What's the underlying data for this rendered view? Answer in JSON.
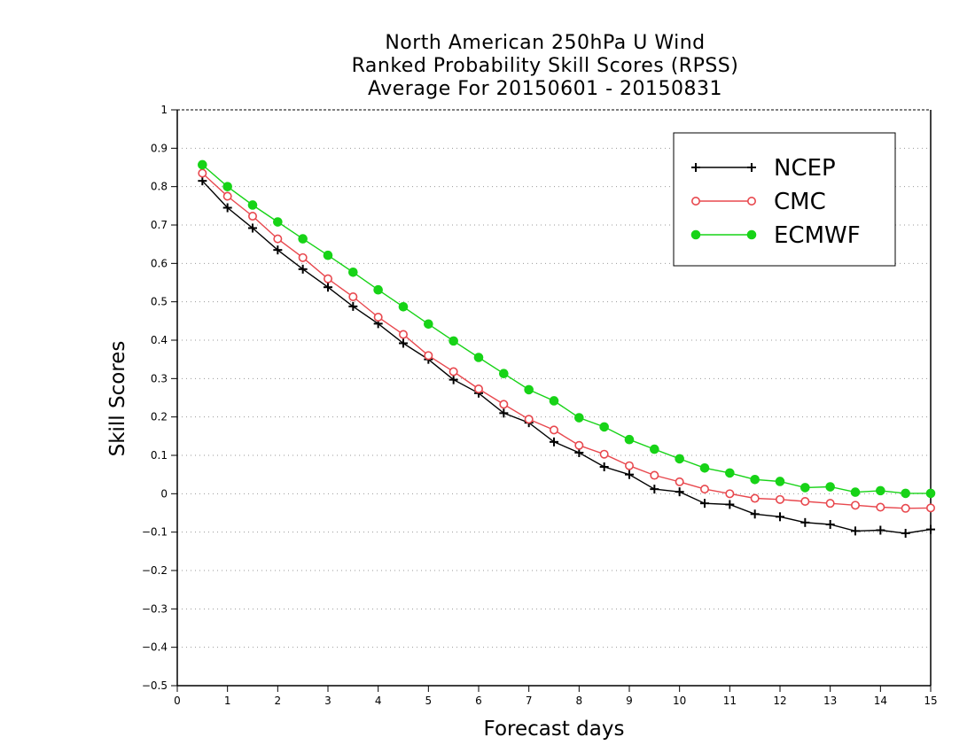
{
  "chart_data": {
    "type": "line",
    "title": [
      "North American 250hPa U Wind",
      "Ranked Probability Skill Scores (RPSS)",
      "Average For 20150601 - 20150831"
    ],
    "xlabel": "Forecast days",
    "ylabel": "Skill Scores",
    "xlim": [
      0,
      15
    ],
    "ylim": [
      -0.5,
      1
    ],
    "xticks": [
      0,
      1,
      2,
      3,
      4,
      5,
      6,
      7,
      8,
      9,
      10,
      11,
      12,
      13,
      14,
      15
    ],
    "xtick_labels": [
      "0",
      "1",
      "2",
      "3",
      "4",
      "5",
      "6",
      "7",
      "8",
      "9",
      "10",
      "11",
      "12",
      "13",
      "14",
      "15"
    ],
    "yticks": [
      -0.5,
      -0.4,
      -0.3,
      -0.2,
      -0.1,
      0,
      0.1,
      0.2,
      0.3,
      0.4,
      0.5,
      0.6,
      0.7,
      0.8,
      0.9,
      1
    ],
    "ytick_labels": [
      "−0.5",
      "−0.4",
      "−0.3",
      "−0.2",
      "−0.1",
      "0",
      "0.1",
      "0.2",
      "0.3",
      "0.4",
      "0.5",
      "0.6",
      "0.7",
      "0.8",
      "0.9",
      "1"
    ],
    "grid": "horizontal dotted",
    "legend_position": "top-right",
    "x": [
      0.5,
      1,
      1.5,
      2,
      2.5,
      3,
      3.5,
      4,
      4.5,
      5,
      5.5,
      6,
      6.5,
      7,
      7.5,
      8,
      8.5,
      9,
      9.5,
      10,
      10.5,
      11,
      11.5,
      12,
      12.5,
      13,
      13.5,
      14,
      14.5,
      15
    ],
    "series": [
      {
        "name": "NCEP",
        "color": "#000000",
        "marker": "plus",
        "values": [
          0.815,
          0.745,
          0.692,
          0.635,
          0.585,
          0.538,
          0.488,
          0.443,
          0.392,
          0.35,
          0.297,
          0.262,
          0.21,
          0.185,
          0.135,
          0.107,
          0.07,
          0.05,
          0.012,
          0.005,
          -0.025,
          -0.028,
          -0.053,
          -0.06,
          -0.075,
          -0.08,
          -0.097,
          -0.095,
          -0.103,
          -0.093
        ]
      },
      {
        "name": "CMC",
        "color": "#e8484e",
        "marker": "open-circle",
        "values": [
          0.835,
          0.775,
          0.723,
          0.664,
          0.615,
          0.56,
          0.513,
          0.46,
          0.415,
          0.36,
          0.318,
          0.273,
          0.233,
          0.194,
          0.166,
          0.126,
          0.103,
          0.073,
          0.048,
          0.031,
          0.012,
          0.0,
          -0.012,
          -0.015,
          -0.02,
          -0.025,
          -0.03,
          -0.035,
          -0.038,
          -0.037
        ]
      },
      {
        "name": "ECMWF",
        "color": "#17d317",
        "marker": "filled-circle",
        "values": [
          0.857,
          0.8,
          0.752,
          0.708,
          0.664,
          0.621,
          0.577,
          0.531,
          0.487,
          0.442,
          0.398,
          0.355,
          0.313,
          0.271,
          0.242,
          0.198,
          0.174,
          0.141,
          0.116,
          0.091,
          0.067,
          0.054,
          0.037,
          0.032,
          0.016,
          0.018,
          0.004,
          0.008,
          0.001,
          0.001
        ]
      }
    ]
  }
}
